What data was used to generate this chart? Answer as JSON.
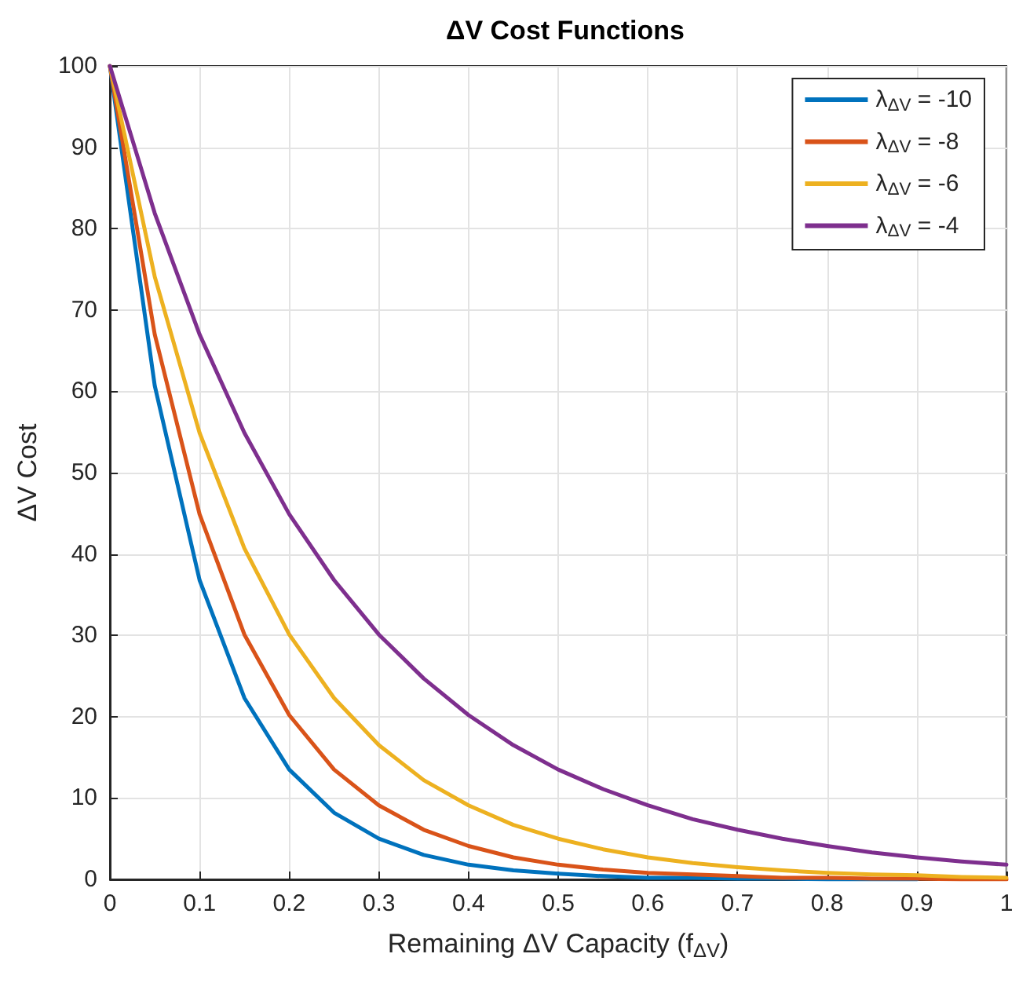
{
  "chart_data": {
    "type": "line",
    "title": "ΔV Cost Functions",
    "xlabel": "Remaining ΔV Capacity (f$_{ΔV}$)",
    "ylabel": "ΔV Cost",
    "x": [
      0,
      0.05,
      0.1,
      0.15,
      0.2,
      0.25,
      0.3,
      0.35,
      0.4,
      0.45,
      0.5,
      0.55,
      0.6,
      0.65,
      0.7,
      0.75,
      0.8,
      0.85,
      0.9,
      0.95,
      1
    ],
    "series": [
      {
        "name": "λ$_{ΔV}$ = -10",
        "color": "#0072bd",
        "values": [
          100,
          60.7,
          36.8,
          22.3,
          13.5,
          8.2,
          5.0,
          3.0,
          1.8,
          1.1,
          0.7,
          0.4,
          0.2,
          0.2,
          0.1,
          0.1,
          0.0,
          0.0,
          0.0,
          null,
          null
        ]
      },
      {
        "name": "λ$_{ΔV}$ = -8",
        "color": "#d95319",
        "values": [
          100,
          67.0,
          44.9,
          30.1,
          20.2,
          13.5,
          9.1,
          6.1,
          4.1,
          2.7,
          1.8,
          1.2,
          0.8,
          0.6,
          0.4,
          0.2,
          0.2,
          0.1,
          0.1,
          0.0,
          0.0
        ]
      },
      {
        "name": "λ$_{ΔV}$ = -6",
        "color": "#edb120",
        "values": [
          100,
          74.1,
          54.9,
          40.7,
          30.1,
          22.3,
          16.5,
          12.2,
          9.1,
          6.7,
          5.0,
          3.7,
          2.7,
          2.0,
          1.5,
          1.1,
          0.8,
          0.6,
          0.5,
          0.3,
          0.2
        ]
      },
      {
        "name": "λ$_{ΔV}$ = -4",
        "color": "#7e2f8e",
        "values": [
          100,
          81.9,
          67.0,
          54.9,
          44.9,
          36.8,
          30.1,
          24.7,
          20.2,
          16.5,
          13.5,
          11.1,
          9.1,
          7.4,
          6.1,
          5.0,
          4.1,
          3.3,
          2.7,
          2.2,
          1.8
        ]
      }
    ],
    "xlim": [
      0,
      1
    ],
    "xticks": [
      0,
      0.1,
      0.2,
      0.3,
      0.4,
      0.5,
      0.6,
      0.7,
      0.8,
      0.9,
      1
    ],
    "ylim": [
      0,
      100
    ],
    "yticks": [
      0,
      10,
      20,
      30,
      40,
      50,
      60,
      70,
      80,
      90,
      100
    ],
    "grid": true,
    "legend": "top right",
    "marker": "none",
    "line_style": "solid"
  }
}
